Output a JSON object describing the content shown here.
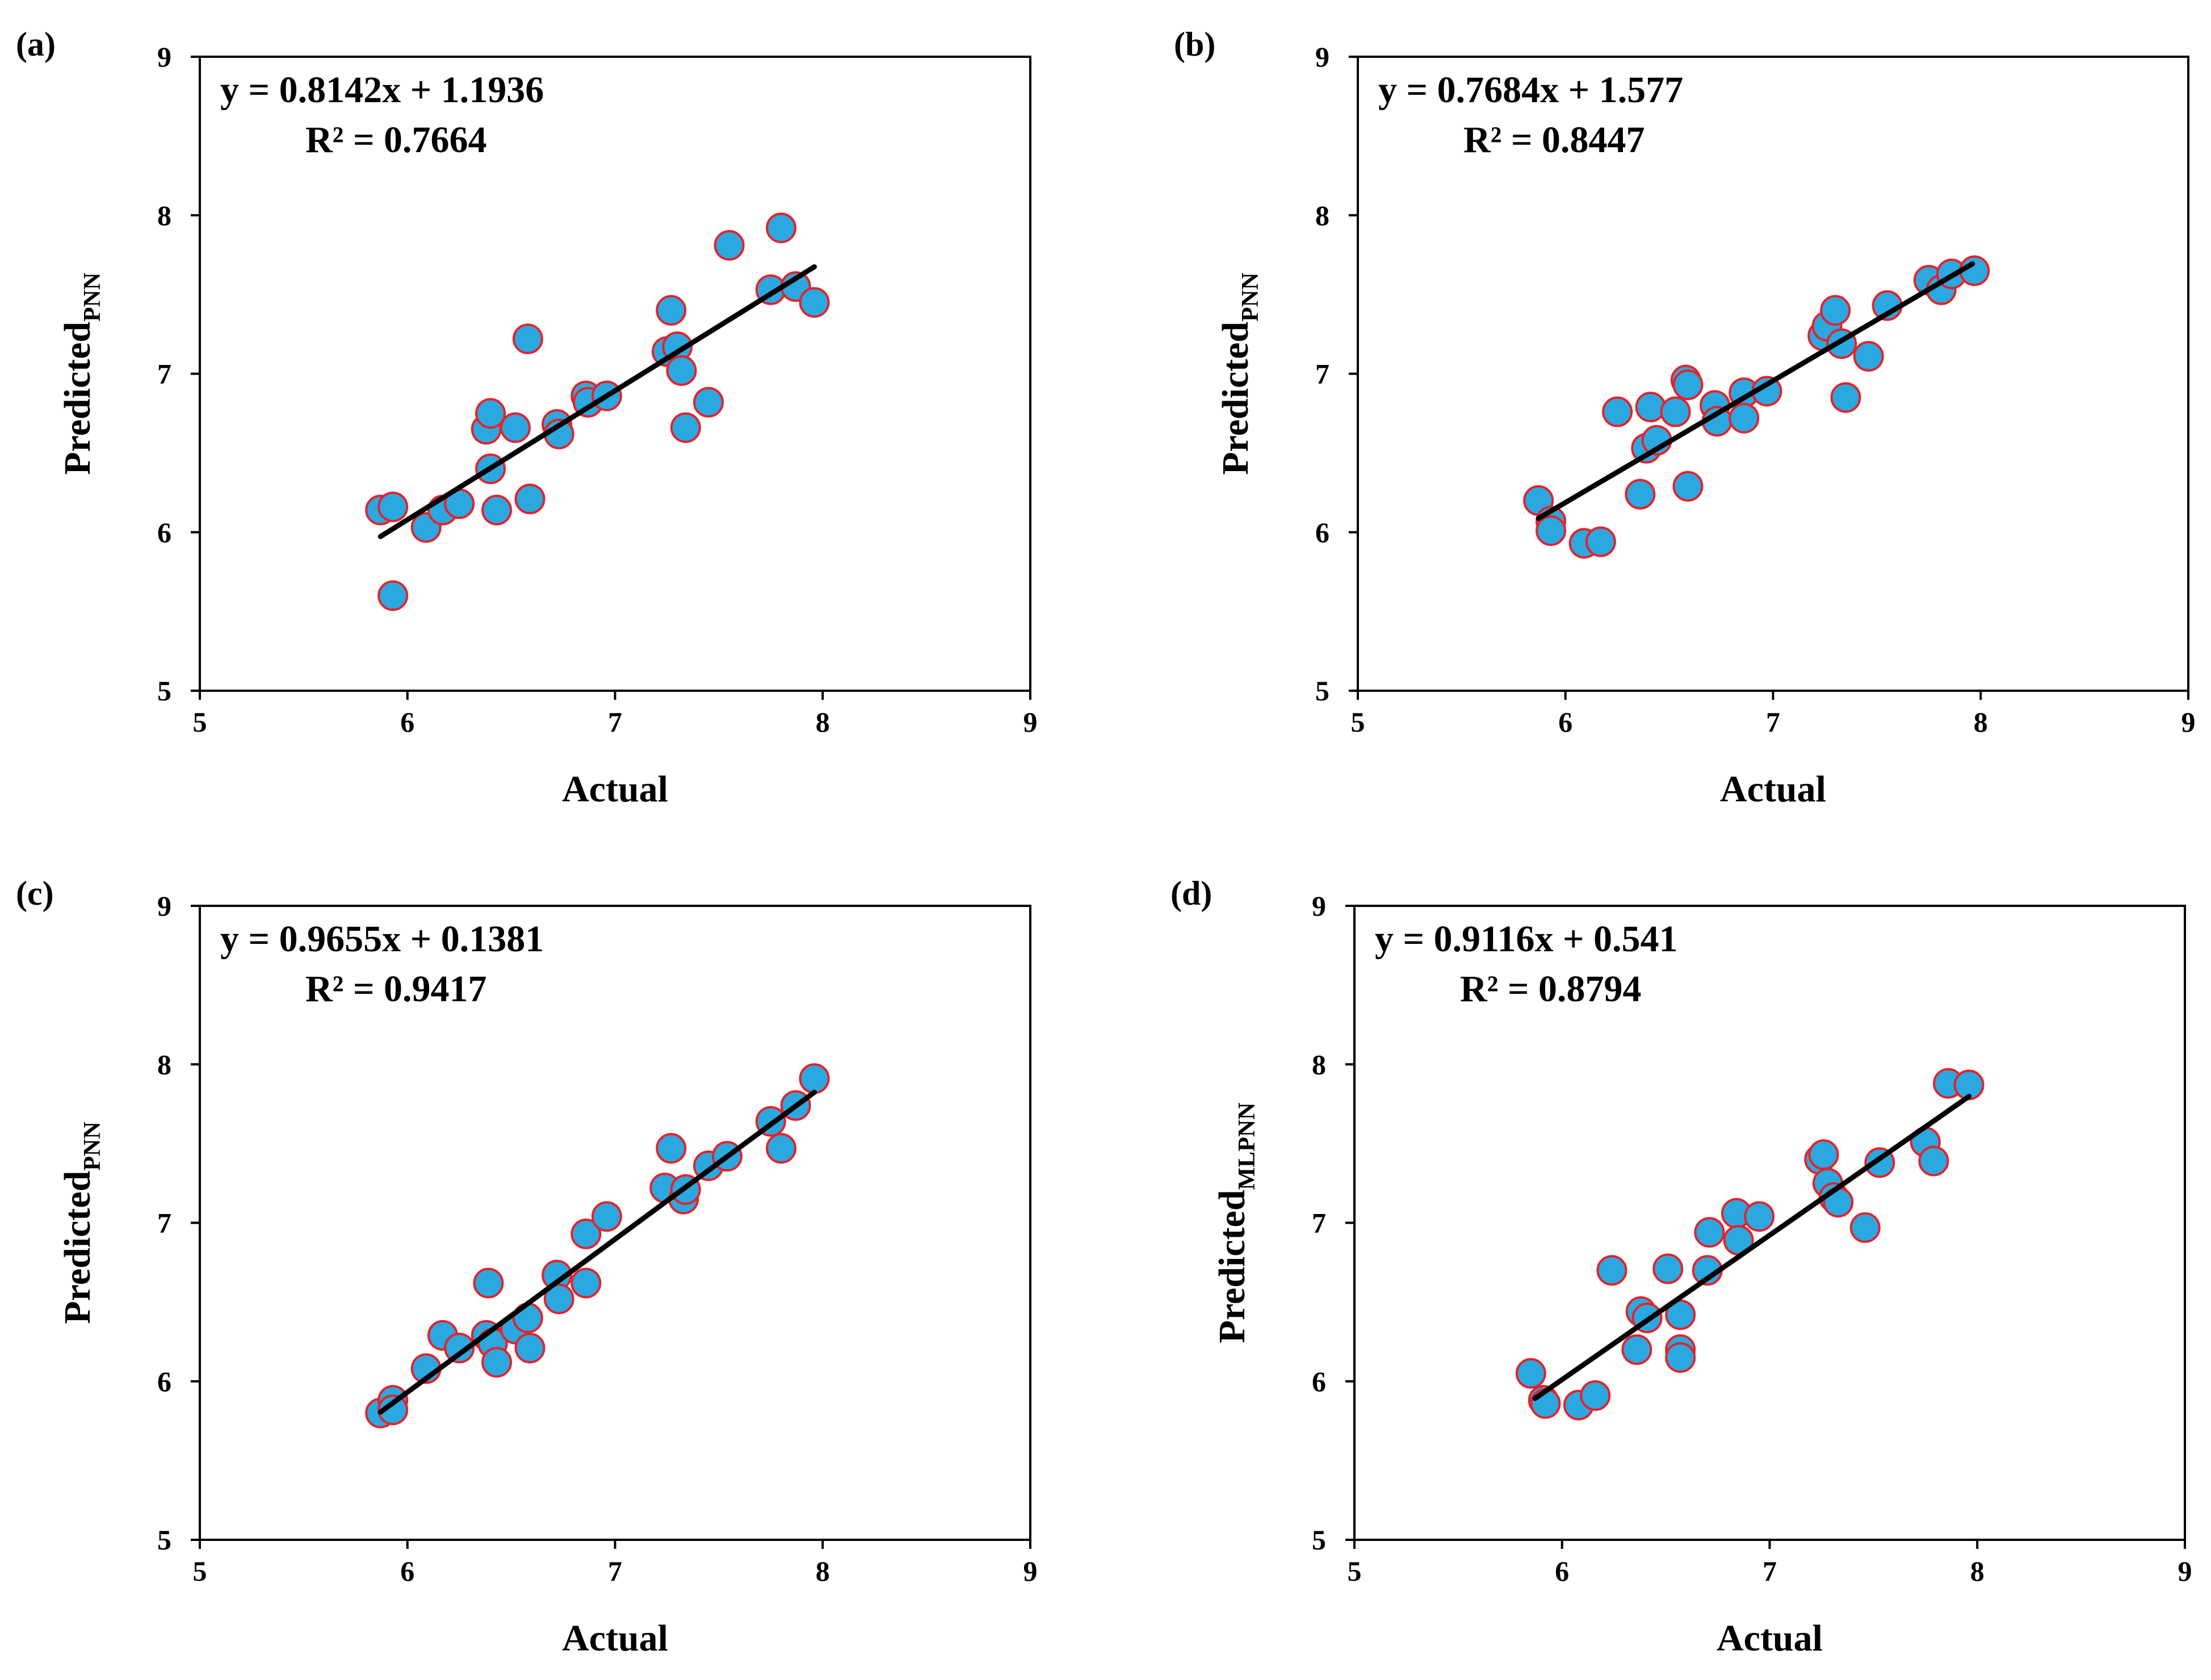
{
  "chart_data": [
    {
      "type": "scatter",
      "panel_label": "(a)",
      "xlabel": "Actual",
      "ylabel": "Predicted",
      "ylabel_sub": "PNN",
      "xlim": [
        5,
        9
      ],
      "ylim": [
        5,
        9
      ],
      "xticks": [
        "5",
        "6",
        "7",
        "8",
        "9"
      ],
      "yticks": [
        "5",
        "6",
        "7",
        "8",
        "9"
      ],
      "equation": "y = 0.8142x + 1.1936",
      "r2": "R² = 0.7664",
      "trendline": {
        "slope": 0.8142,
        "intercept": 1.1936,
        "x_range": [
          5.87,
          7.96
        ]
      },
      "grid": false,
      "marker_fill": "#2aa8df",
      "marker_edge": "#e8202a",
      "line_color": "#000000",
      "points": [
        [
          5.87,
          6.14
        ],
        [
          5.93,
          6.16
        ],
        [
          5.93,
          5.6
        ],
        [
          6.09,
          6.03
        ],
        [
          6.17,
          6.14
        ],
        [
          6.25,
          6.18
        ],
        [
          6.38,
          6.65
        ],
        [
          6.4,
          6.75
        ],
        [
          6.4,
          6.4
        ],
        [
          6.43,
          6.14
        ],
        [
          6.52,
          6.66
        ],
        [
          6.58,
          7.22
        ],
        [
          6.59,
          6.21
        ],
        [
          6.72,
          6.68
        ],
        [
          6.73,
          6.62
        ],
        [
          6.86,
          6.86
        ],
        [
          6.87,
          6.82
        ],
        [
          6.96,
          6.86
        ],
        [
          7.25,
          7.14
        ],
        [
          7.27,
          7.4
        ],
        [
          7.3,
          7.17
        ],
        [
          7.32,
          7.02
        ],
        [
          7.34,
          6.66
        ],
        [
          7.45,
          6.82
        ],
        [
          7.55,
          7.81
        ],
        [
          7.75,
          7.53
        ],
        [
          7.8,
          7.92
        ],
        [
          7.87,
          7.55
        ],
        [
          7.96,
          7.45
        ]
      ]
    },
    {
      "type": "scatter",
      "panel_label": "(b)",
      "xlabel": "Actual",
      "ylabel": "Predicted",
      "ylabel_sub": "PNN",
      "xlim": [
        5,
        9
      ],
      "ylim": [
        5,
        9
      ],
      "xticks": [
        "5",
        "6",
        "7",
        "8",
        "9"
      ],
      "yticks": [
        "5",
        "6",
        "7",
        "8",
        "9"
      ],
      "equation": "y = 0.7684x + 1.577",
      "r2": "R² = 0.8447",
      "trendline": {
        "slope": 0.7684,
        "intercept": 1.577,
        "x_range": [
          5.87,
          7.96
        ]
      },
      "grid": false,
      "marker_fill": "#2aa8df",
      "marker_edge": "#e8202a",
      "line_color": "#000000",
      "points": [
        [
          5.87,
          6.2
        ],
        [
          5.93,
          6.07
        ],
        [
          5.93,
          6.01
        ],
        [
          6.09,
          5.93
        ],
        [
          6.17,
          5.94
        ],
        [
          6.25,
          6.76
        ],
        [
          6.36,
          6.24
        ],
        [
          6.39,
          6.53
        ],
        [
          6.41,
          6.79
        ],
        [
          6.44,
          6.58
        ],
        [
          6.53,
          6.76
        ],
        [
          6.58,
          6.96
        ],
        [
          6.59,
          6.93
        ],
        [
          6.59,
          6.29
        ],
        [
          6.72,
          6.8
        ],
        [
          6.73,
          6.7
        ],
        [
          6.86,
          6.88
        ],
        [
          6.86,
          6.72
        ],
        [
          6.97,
          6.89
        ],
        [
          7.24,
          7.24
        ],
        [
          7.26,
          7.3
        ],
        [
          7.3,
          7.4
        ],
        [
          7.33,
          7.19
        ],
        [
          7.35,
          6.85
        ],
        [
          7.46,
          7.11
        ],
        [
          7.55,
          7.43
        ],
        [
          7.75,
          7.59
        ],
        [
          7.81,
          7.53
        ],
        [
          7.86,
          7.63
        ],
        [
          7.97,
          7.65
        ]
      ]
    },
    {
      "type": "scatter",
      "panel_label": "(c)",
      "xlabel": "Actual",
      "ylabel": "Predicted",
      "ylabel_sub": "PNN",
      "xlim": [
        5,
        9
      ],
      "ylim": [
        5,
        9
      ],
      "xticks": [
        "5",
        "6",
        "7",
        "8",
        "9"
      ],
      "yticks": [
        "5",
        "6",
        "7",
        "8",
        "9"
      ],
      "equation": "y = 0.9655x + 0.1381",
      "r2": "R² = 0.9417",
      "trendline": {
        "slope": 0.9655,
        "intercept": 0.1381,
        "x_range": [
          5.87,
          7.96
        ]
      },
      "grid": false,
      "marker_fill": "#2aa8df",
      "marker_edge": "#e8202a",
      "line_color": "#000000",
      "points": [
        [
          5.87,
          5.8
        ],
        [
          5.93,
          5.88
        ],
        [
          5.93,
          5.82
        ],
        [
          6.09,
          6.08
        ],
        [
          6.17,
          6.29
        ],
        [
          6.25,
          6.21
        ],
        [
          6.38,
          6.29
        ],
        [
          6.39,
          6.62
        ],
        [
          6.41,
          6.24
        ],
        [
          6.43,
          6.12
        ],
        [
          6.52,
          6.33
        ],
        [
          6.58,
          6.4
        ],
        [
          6.59,
          6.21
        ],
        [
          6.72,
          6.67
        ],
        [
          6.73,
          6.52
        ],
        [
          6.86,
          6.93
        ],
        [
          6.86,
          6.62
        ],
        [
          6.96,
          7.04
        ],
        [
          7.24,
          7.22
        ],
        [
          7.27,
          7.47
        ],
        [
          7.33,
          7.15
        ],
        [
          7.34,
          7.21
        ],
        [
          7.45,
          7.36
        ],
        [
          7.54,
          7.42
        ],
        [
          7.75,
          7.64
        ],
        [
          7.8,
          7.47
        ],
        [
          7.87,
          7.74
        ],
        [
          7.96,
          7.91
        ]
      ]
    },
    {
      "type": "scatter",
      "panel_label": "(d)",
      "xlabel": "Actual",
      "ylabel": "Predicted",
      "ylabel_sub": "MLPNN",
      "xlim": [
        5,
        9
      ],
      "ylim": [
        5,
        9
      ],
      "xticks": [
        "5",
        "6",
        "7",
        "8",
        "9"
      ],
      "yticks": [
        "5",
        "6",
        "7",
        "8",
        "9"
      ],
      "equation": "y = 0.9116x + 0.541",
      "r2": "R² = 0.8794",
      "trendline": {
        "slope": 0.9116,
        "intercept": 0.541,
        "x_range": [
          5.87,
          7.96
        ]
      },
      "grid": false,
      "marker_fill": "#2aa8df",
      "marker_edge": "#e8202a",
      "line_color": "#000000",
      "points": [
        [
          5.85,
          6.05
        ],
        [
          5.91,
          5.88
        ],
        [
          5.92,
          5.86
        ],
        [
          6.08,
          5.85
        ],
        [
          6.16,
          5.91
        ],
        [
          6.24,
          6.7
        ],
        [
          6.36,
          6.2
        ],
        [
          6.38,
          6.44
        ],
        [
          6.41,
          6.4
        ],
        [
          6.51,
          6.71
        ],
        [
          6.57,
          6.42
        ],
        [
          6.57,
          6.2
        ],
        [
          6.57,
          6.15
        ],
        [
          6.7,
          6.7
        ],
        [
          6.71,
          6.94
        ],
        [
          6.84,
          7.06
        ],
        [
          6.85,
          6.89
        ],
        [
          6.95,
          7.04
        ],
        [
          7.24,
          7.4
        ],
        [
          7.26,
          7.43
        ],
        [
          7.28,
          7.25
        ],
        [
          7.31,
          7.16
        ],
        [
          7.33,
          7.13
        ],
        [
          7.46,
          6.97
        ],
        [
          7.53,
          7.38
        ],
        [
          7.75,
          7.51
        ],
        [
          7.79,
          7.39
        ],
        [
          7.86,
          7.88
        ],
        [
          7.96,
          7.87
        ]
      ]
    }
  ]
}
